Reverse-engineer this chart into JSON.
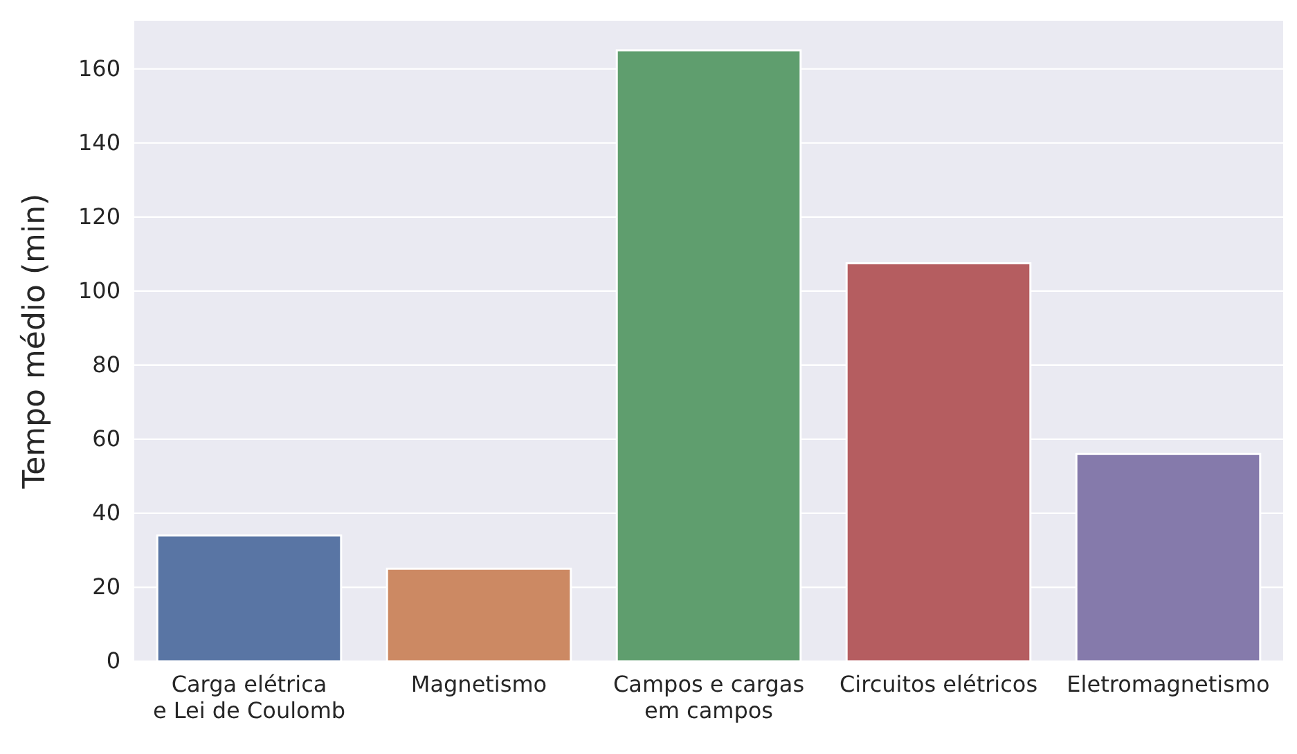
{
  "chart_data": {
    "type": "bar",
    "ylabel": "Tempo médio (min)",
    "categories": [
      "Carga elétrica e Lei de Coulomb",
      "Magnetismo",
      "Campos e cargas em campos",
      "Circuitos elétricos",
      "Eletromagnetismo"
    ],
    "values": [
      34,
      25,
      165,
      107.5,
      56
    ],
    "colors": [
      "#5975a4",
      "#cc8963",
      "#5f9e6e",
      "#b55d60",
      "#857aab"
    ],
    "ylim": [
      0,
      173
    ],
    "yticks": [
      0,
      20,
      40,
      60,
      80,
      100,
      120,
      140,
      160
    ],
    "grid": "y"
  }
}
